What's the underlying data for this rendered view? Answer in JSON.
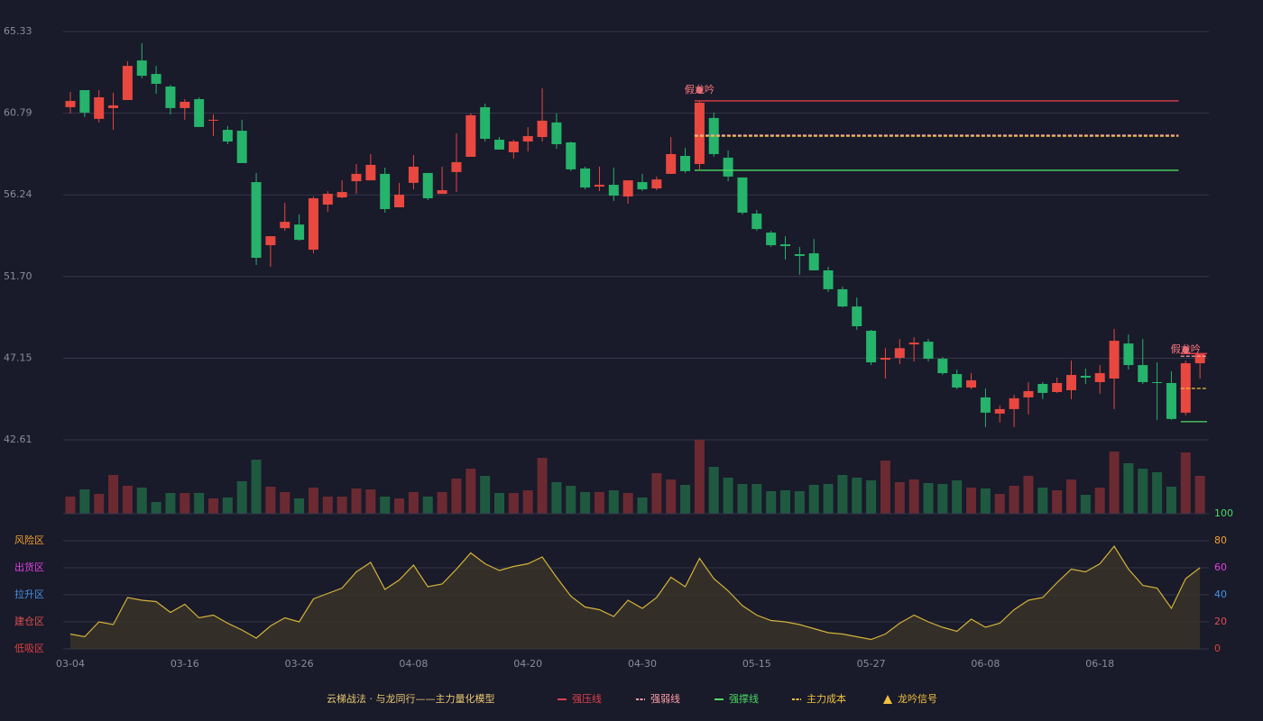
{
  "chart_data": {
    "type": "candlestick",
    "title": "云梯战法 · 与龙同行——主力量化模型",
    "categories": [
      "03-04",
      null,
      null,
      null,
      null,
      null,
      null,
      null,
      "03-16",
      null,
      null,
      null,
      null,
      null,
      null,
      null,
      "03-26",
      null,
      null,
      null,
      null,
      null,
      null,
      null,
      "04-08",
      null,
      null,
      null,
      null,
      null,
      null,
      null,
      "04-20",
      null,
      null,
      null,
      null,
      null,
      null,
      null,
      "04-30",
      null,
      null,
      null,
      null,
      null,
      null,
      null,
      "05-15",
      null,
      null,
      null,
      null,
      null,
      null,
      null,
      "05-27",
      null,
      null,
      null,
      null,
      null,
      null,
      null,
      "06-08",
      null,
      null,
      null,
      null,
      null,
      null,
      null,
      "06-18",
      null,
      null,
      null,
      null,
      null,
      null,
      null
    ],
    "open": [
      61.12,
      62.07,
      60.47,
      61.07,
      61.52,
      63.72,
      62.97,
      62.27,
      61.07,
      61.57,
      60.37,
      59.86,
      59.81,
      56.95,
      53.44,
      54.39,
      54.59,
      53.19,
      55.7,
      56.1,
      57.0,
      57.05,
      57.41,
      55.55,
      56.91,
      57.46,
      56.3,
      57.51,
      58.36,
      61.12,
      59.31,
      58.61,
      59.21,
      59.46,
      60.27,
      59.16,
      57.71,
      56.7,
      56.8,
      56.15,
      56.95,
      56.6,
      57.41,
      58.41,
      57.96,
      60.52,
      58.31,
      57.21,
      55.2,
      54.14,
      53.49,
      52.94,
      52.99,
      52.04,
      50.99,
      50.03,
      48.68,
      47.07,
      47.17,
      47.92,
      48.07,
      47.12,
      46.27,
      45.52,
      44.97,
      44.07,
      44.32,
      44.97,
      45.72,
      45.27,
      45.37,
      46.17,
      45.82,
      46.02,
      47.97,
      46.77,
      45.82,
      45.77,
      44.12,
      46.87
    ],
    "high": [
      61.97,
      62.07,
      62.07,
      61.92,
      63.67,
      64.68,
      63.42,
      62.37,
      61.57,
      61.67,
      60.72,
      60.07,
      60.42,
      57.46,
      53.94,
      55.8,
      55.15,
      56.15,
      56.45,
      57.05,
      57.96,
      58.51,
      57.76,
      56.91,
      58.46,
      57.46,
      57.81,
      59.66,
      60.77,
      61.32,
      59.46,
      59.31,
      60.01,
      62.17,
      60.77,
      59.21,
      57.81,
      57.81,
      57.76,
      57.05,
      57.41,
      57.26,
      59.46,
      58.86,
      61.47,
      60.82,
      58.71,
      57.21,
      55.4,
      54.24,
      53.94,
      53.34,
      53.79,
      52.24,
      51.14,
      50.53,
      48.73,
      47.71,
      48.22,
      48.32,
      48.22,
      47.22,
      46.52,
      46.32,
      45.47,
      44.52,
      45.12,
      45.82,
      45.82,
      46.07,
      47.02,
      46.57,
      46.77,
      48.78,
      48.47,
      48.22,
      46.92,
      46.42,
      47.02,
      47.41
    ],
    "low": [
      60.77,
      60.57,
      60.27,
      59.86,
      61.52,
      62.72,
      61.87,
      60.72,
      60.42,
      60.02,
      59.51,
      59.06,
      58.01,
      52.34,
      52.24,
      54.24,
      53.69,
      52.99,
      55.3,
      56.05,
      56.3,
      57.05,
      55.25,
      55.55,
      56.55,
      55.95,
      56.3,
      56.4,
      58.36,
      59.21,
      58.76,
      58.26,
      58.66,
      59.21,
      58.81,
      57.56,
      56.55,
      56.45,
      55.9,
      55.75,
      56.45,
      56.5,
      57.41,
      57.46,
      57.66,
      58.36,
      57.0,
      55.15,
      54.24,
      53.34,
      52.64,
      51.8,
      52.04,
      50.84,
      49.98,
      48.73,
      46.77,
      46.02,
      46.82,
      46.97,
      46.97,
      46.22,
      45.42,
      45.42,
      43.32,
      43.57,
      43.32,
      44.02,
      44.87,
      45.22,
      44.87,
      45.72,
      45.17,
      44.32,
      46.52,
      45.72,
      43.72,
      43.72,
      43.97,
      46.02
    ],
    "close": [
      61.47,
      60.82,
      61.67,
      61.22,
      63.42,
      62.87,
      62.42,
      61.07,
      61.42,
      60.02,
      60.42,
      59.21,
      58.01,
      52.74,
      53.94,
      54.74,
      53.74,
      56.05,
      56.3,
      56.4,
      57.41,
      57.91,
      55.45,
      56.25,
      57.81,
      56.05,
      56.5,
      58.06,
      60.67,
      59.36,
      58.76,
      59.21,
      59.51,
      60.37,
      59.06,
      57.66,
      56.65,
      56.8,
      56.2,
      57.05,
      56.55,
      57.1,
      58.51,
      57.56,
      61.37,
      58.51,
      57.26,
      55.25,
      54.34,
      53.44,
      53.39,
      52.84,
      52.04,
      50.99,
      50.03,
      48.93,
      46.92,
      47.17,
      47.71,
      48.02,
      47.12,
      46.32,
      45.52,
      45.92,
      44.12,
      44.32,
      44.92,
      45.32,
      45.22,
      45.77,
      46.22,
      46.07,
      46.32,
      48.12,
      46.77,
      45.82,
      45.77,
      43.77,
      46.87,
      47.41
    ],
    "up_color": "#e8483f",
    "down_color": "#26b36b",
    "ylim": [
      42.61,
      65.33
    ],
    "yticks": [
      42.61,
      47.15,
      {
        "value": 51.7,
        "label": "51.70"
      },
      56.24,
      60.79,
      65.33
    ],
    "grid": true,
    "volume": [
      19,
      27,
      22,
      43,
      31,
      29,
      13,
      23,
      23,
      23,
      17,
      18,
      36,
      60,
      30,
      24,
      17,
      29,
      19,
      19,
      28,
      27,
      19,
      17,
      24,
      19,
      24,
      39,
      50,
      42,
      23,
      23,
      26,
      62,
      35,
      31,
      24,
      24,
      26,
      23,
      18,
      45,
      38,
      32,
      82,
      52,
      40,
      33,
      33,
      25,
      26,
      25,
      32,
      33,
      43,
      40,
      37,
      59,
      35,
      38,
      34,
      33,
      37,
      29,
      28,
      22,
      31,
      42,
      29,
      26,
      38,
      21,
      29,
      69,
      56,
      50,
      46,
      30,
      68,
      42
    ],
    "volume_up_color": "#6b2a31",
    "volume_down_color": "#1f5a40",
    "levels": [
      {
        "name": "强压线",
        "color": "#e0404a",
        "dashed": false,
        "segments": [
          {
            "from": 44,
            "to": 77,
            "value": 61.47
          },
          {
            "from": 78,
            "to": 79,
            "value": 47.41
          }
        ]
      },
      {
        "name": "强弱线",
        "color": "#ff9fa8",
        "dashed": true,
        "segments": [
          {
            "from": 44,
            "to": 77,
            "value": 59.56
          },
          {
            "from": 78,
            "to": 79,
            "value": 47.26
          }
        ]
      },
      {
        "name": "强撑线",
        "color": "#4cd964",
        "dashed": false,
        "segments": [
          {
            "from": 44,
            "to": 77,
            "value": 57.61
          },
          {
            "from": 78,
            "to": 79,
            "value": 43.62
          }
        ]
      },
      {
        "name": "主力成本",
        "color": "#f0c040",
        "dashed": true,
        "segments": [
          {
            "from": 44,
            "to": 77,
            "value": 59.51
          },
          {
            "from": 78,
            "to": 79,
            "value": 45.47
          }
        ]
      }
    ],
    "signals": {
      "name": "龙吟信号",
      "color": "#f0c040",
      "label_color": "#ff7a80",
      "items": [
        {
          "index": 44,
          "label": "假龙吟"
        },
        {
          "index": 78,
          "label": "假龙吟"
        }
      ]
    },
    "indicator": {
      "type": "area",
      "color": "#d4b23a",
      "fill": "#3a3428",
      "values": [
        11,
        9,
        20,
        18,
        38,
        36,
        35,
        27,
        33,
        23,
        25,
        19,
        14,
        8,
        17,
        23,
        20,
        37,
        41,
        45,
        57,
        64,
        44,
        51,
        62,
        46,
        48,
        59,
        71,
        63,
        58,
        61,
        63,
        68,
        53,
        39,
        31,
        29,
        24,
        36,
        30,
        38,
        53,
        46,
        67,
        52,
        43,
        32,
        25,
        21,
        20,
        18,
        15,
        12,
        11,
        9,
        7,
        11,
        19,
        25,
        20,
        16,
        13,
        22,
        16,
        19,
        29,
        36,
        38,
        49,
        59,
        57,
        63,
        76,
        59,
        47,
        45,
        30,
        52,
        60
      ],
      "ylim": [
        0,
        100
      ],
      "yticks": [
        0,
        20,
        40,
        60,
        80,
        100
      ],
      "ytick_colors": [
        "#e04040",
        "#e05050",
        "#4a90e2",
        "#e040e0",
        "#f0a030",
        "#4cd964"
      ],
      "zones": [
        {
          "label": "低吸区",
          "value": 0,
          "color": "#e04040"
        },
        {
          "label": "建仓区",
          "value": 20,
          "color": "#e05050"
        },
        {
          "label": "拉升区",
          "value": 40,
          "color": "#4a90e2"
        },
        {
          "label": "出货区",
          "value": 60,
          "color": "#e040e0"
        },
        {
          "label": "风险区",
          "value": 80,
          "color": "#f0a030"
        }
      ]
    }
  }
}
